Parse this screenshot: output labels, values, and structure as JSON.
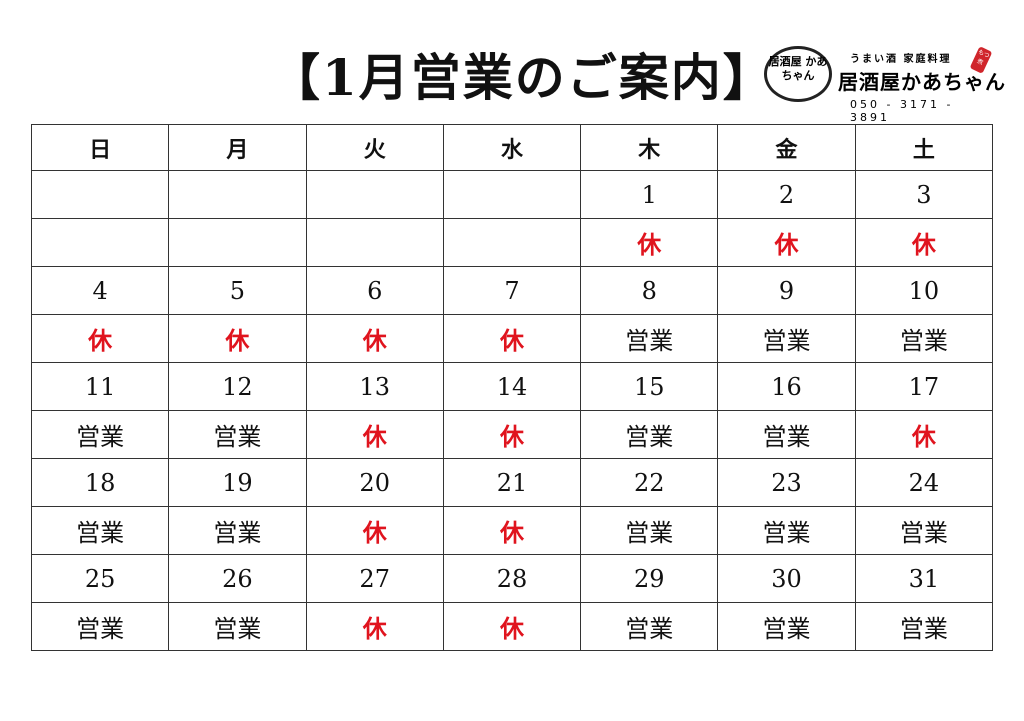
{
  "title": "【1月営業のご案内】",
  "logo": {
    "circle_text": "居酒屋 かあちゃん",
    "tagline": "うまい酒 家庭料理",
    "name": "居酒屋かあちゃん",
    "phone": "050 - 3171 - 3891",
    "tag": "もつ煮"
  },
  "colors": {
    "closed": "#e0141e",
    "open": "#111111"
  },
  "weekdays": [
    "日",
    "月",
    "火",
    "水",
    "木",
    "金",
    "土"
  ],
  "weeks": [
    {
      "days": [
        "",
        "",
        "",
        "",
        "1",
        "2",
        "3"
      ],
      "status": [
        "",
        "",
        "",
        "",
        "休",
        "休",
        "休"
      ]
    },
    {
      "days": [
        "4",
        "5",
        "6",
        "7",
        "8",
        "9",
        "10"
      ],
      "status": [
        "休",
        "休",
        "休",
        "休",
        "営業",
        "営業",
        "営業"
      ]
    },
    {
      "days": [
        "11",
        "12",
        "13",
        "14",
        "15",
        "16",
        "17"
      ],
      "status": [
        "営業",
        "営業",
        "休",
        "休",
        "営業",
        "営業",
        "休"
      ]
    },
    {
      "days": [
        "18",
        "19",
        "20",
        "21",
        "22",
        "23",
        "24"
      ],
      "status": [
        "営業",
        "営業",
        "休",
        "休",
        "営業",
        "営業",
        "営業"
      ]
    },
    {
      "days": [
        "25",
        "26",
        "27",
        "28",
        "29",
        "30",
        "31"
      ],
      "status": [
        "営業",
        "営業",
        "休",
        "休",
        "営業",
        "営業",
        "営業"
      ]
    }
  ]
}
